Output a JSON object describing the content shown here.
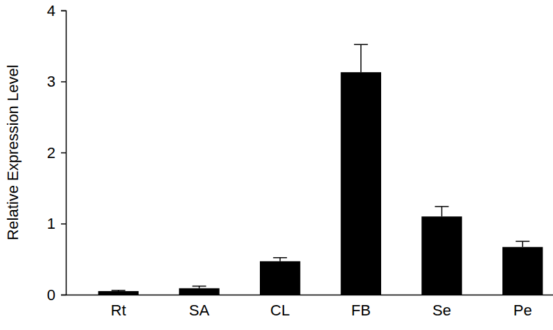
{
  "chart_data": {
    "type": "bar",
    "y_label": "Relative Expression Level",
    "categories": [
      "Rt",
      "SA",
      "CL",
      "FB",
      "Se",
      "Pe"
    ],
    "values": [
      0.05,
      0.09,
      0.47,
      3.13,
      1.1,
      0.67
    ],
    "errors": [
      0.01,
      0.03,
      0.05,
      0.39,
      0.14,
      0.08
    ],
    "color": "#000000",
    "ylim": [
      0,
      4
    ],
    "yticks": [
      0,
      1,
      2,
      3,
      4
    ],
    "grid": false
  }
}
